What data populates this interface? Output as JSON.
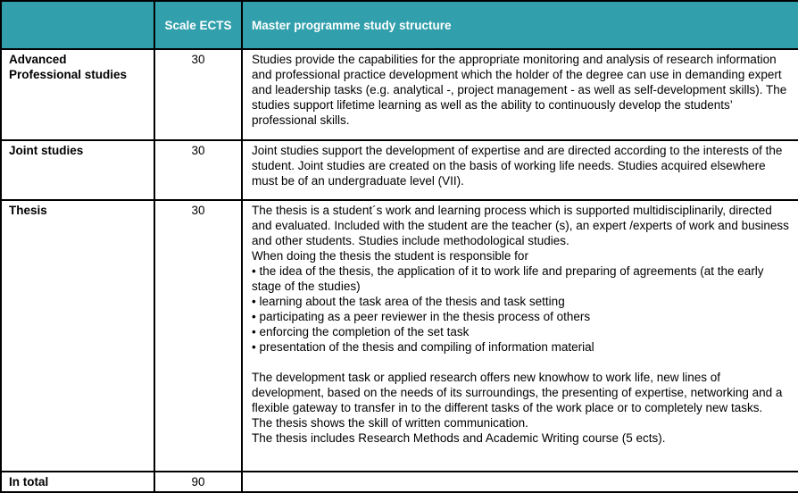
{
  "header": {
    "col_label": "",
    "col_ects": "Scale ECTS",
    "col_desc": "Master programme study structure"
  },
  "rows": [
    {
      "label": "Advanced\nProfessional studies",
      "ects": "30",
      "description": "Studies provide the capabilities for the appropriate monitoring and analysis of research information and professional practice development which the holder of the degree can use in demanding expert and leadership tasks (e.g. analytical -, project management - as well as self-development skills). The studies support lifetime learning as well as the ability to continuously develop the students’ professional skills."
    },
    {
      "label": "Joint studies",
      "ects": "30",
      "description": "Joint studies support the development of expertise and are directed according to the interests of the student. Joint studies are created on the basis of working life needs. Studies acquired elsewhere must be of an undergraduate level (VII)."
    },
    {
      "label": "Thesis",
      "ects": "30",
      "description": "The thesis is a student´s work and learning process which is supported multidisciplinarily, directed and evaluated. Included with the student are the teacher (s), an expert /experts of work and business and other students. Studies include methodological studies.\nWhen doing the thesis the student is responsible for\n• the idea of the thesis, the application of it to work life and preparing of agreements (at the early stage of the studies)\n• learning about the task area of the thesis and task setting\n• participating as a peer reviewer in the thesis process of others\n• enforcing the completion of the set task\n• presentation of the thesis and compiling of information material\n\nThe development task or applied research offers new knowhow to work life, new lines of development, based on the needs of its surroundings, the presenting of expertise, networking and a flexible gateway to transfer in to the different tasks of the work place or to completely new tasks.\nThe thesis shows the skill of written communication.\nThe thesis includes Research Methods and Academic Writing course (5 ects)."
    },
    {
      "label": "In total",
      "ects": "90",
      "description": ""
    }
  ],
  "colors": {
    "header_bg": "#32A0AC",
    "header_text": "#FFFFFF",
    "border": "#000000",
    "body_text": "#000000"
  }
}
